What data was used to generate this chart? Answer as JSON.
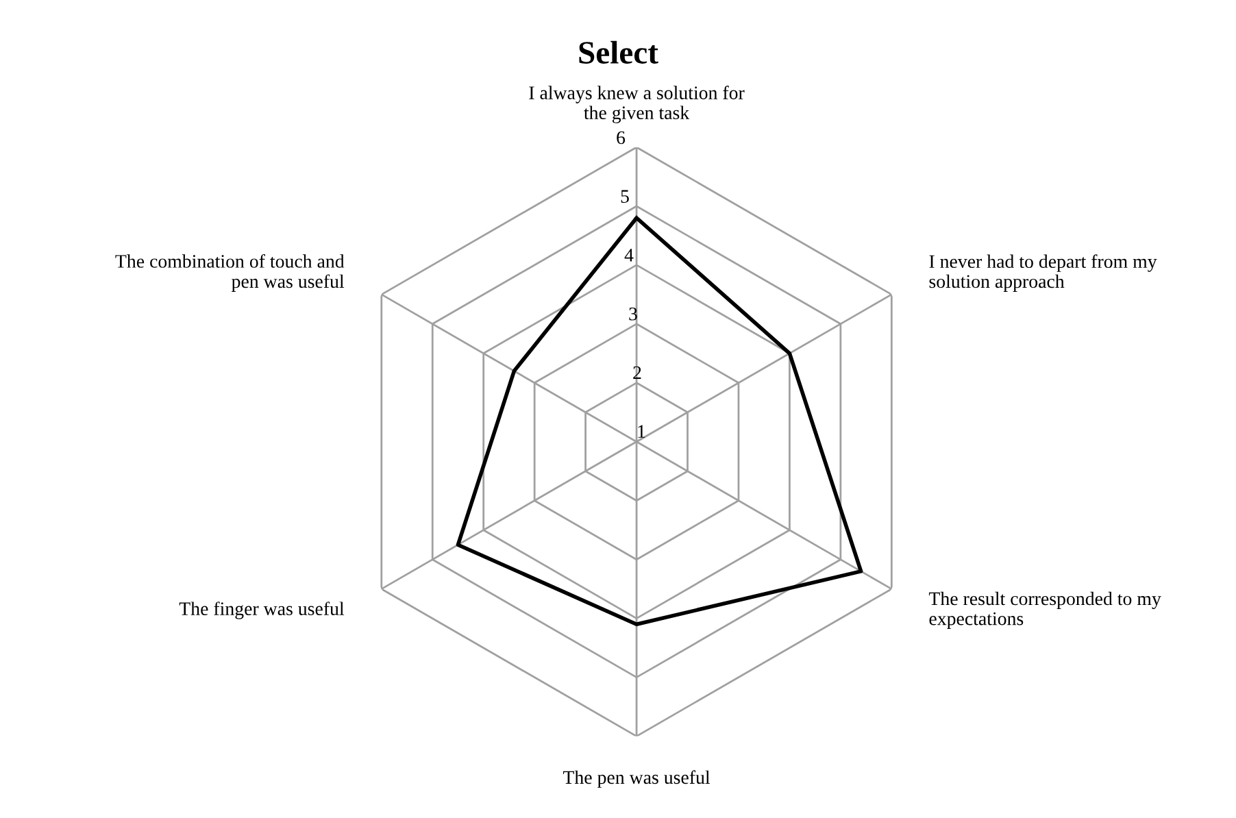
{
  "chart_data": {
    "type": "radar",
    "title": "Select",
    "categories": [
      "I always knew a solution for\nthe given task",
      "I never had to depart from my\nsolution approach",
      "The result corresponded to my\nexpectations",
      "The pen was useful",
      "The finger was useful",
      "The combination of touch and\npen was useful"
    ],
    "series": [
      {
        "color": "#000000",
        "values": [
          4.8,
          4.0,
          5.4,
          4.1,
          4.5,
          3.4
        ]
      }
    ],
    "ylim": [
      1,
      6
    ],
    "yticks": [
      1,
      2,
      3,
      4,
      5,
      6
    ],
    "grid": true,
    "marker": "none",
    "line_style": "solid"
  }
}
